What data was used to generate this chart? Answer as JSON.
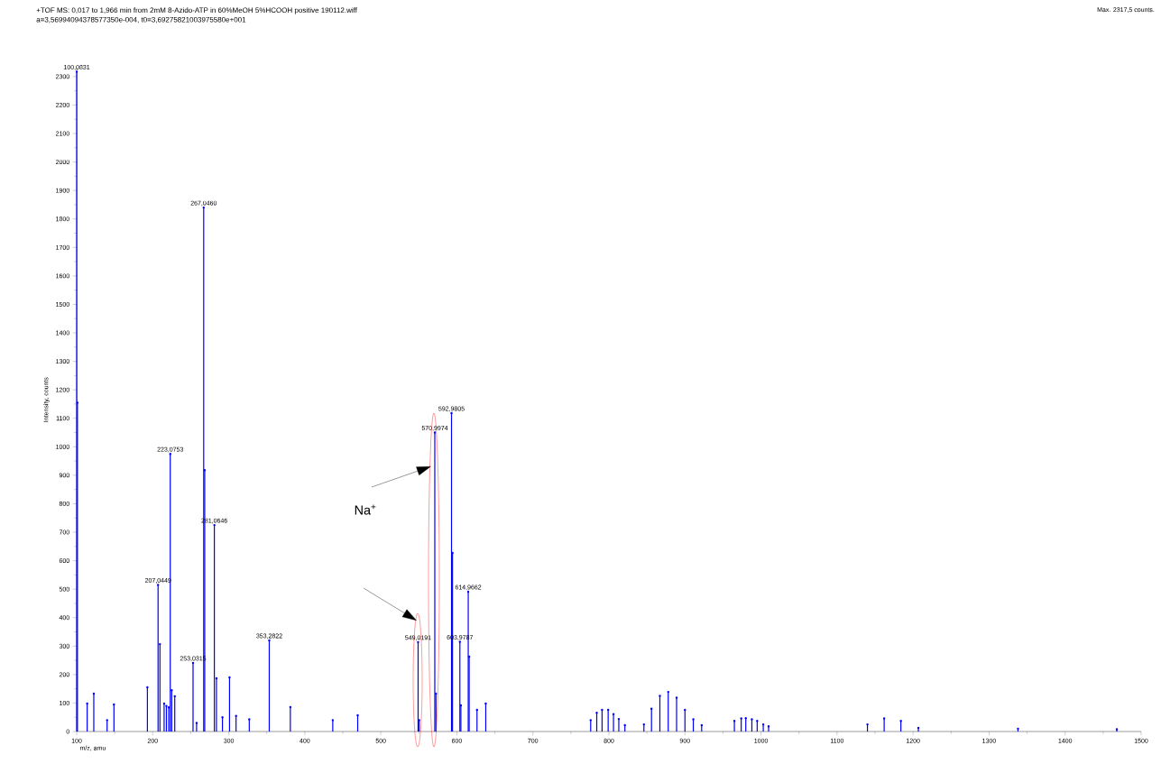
{
  "chart_data": {
    "type": "lollipop",
    "title": "+TOF MS: 0,017 to 1,966 min from 2mM 8-Azido-ATP in 60%MeOH 5%HCOOH positive 190112.wiff",
    "subtitle": "a=3,56994094378577350e-004, t0=3,69275821003975580e+001",
    "xlabel": "m/z, amu",
    "ylabel": "Intensity, counts",
    "annotations": [
      "Max. 2317,5 counts.",
      "Na$^{+}$"
    ],
    "color": "#0000ff",
    "x": [
      100.08,
      101.0,
      113.8,
      122.5,
      140,
      149,
      193,
      207.04,
      209.5,
      215,
      218,
      221,
      223.08,
      225,
      229,
      253.03,
      257.7,
      267.05,
      268.4,
      281.06,
      283.8,
      291.7,
      301,
      309.6,
      327,
      353.28,
      381,
      436.8,
      469.6,
      549.02,
      550.5,
      571.0,
      572.5,
      592.98,
      594.3,
      603.98,
      605.3,
      614.97,
      616.2,
      626.5,
      638,
      776,
      784,
      791,
      799,
      806,
      813,
      821,
      846,
      856,
      867,
      878,
      889,
      900,
      911,
      922,
      965,
      974,
      980,
      988,
      995,
      1003,
      1010,
      1140,
      1162,
      1184,
      1207,
      1338,
      1468
    ],
    "values": [
      2317,
      1155,
      98,
      133,
      40,
      95,
      155,
      515,
      307,
      98,
      90,
      85,
      975,
      145,
      124,
      241,
      30,
      1840,
      918,
      725,
      187,
      50,
      190,
      55,
      43,
      320,
      86,
      40,
      57,
      314,
      40,
      1050,
      133,
      1118,
      627,
      315,
      92,
      491,
      263,
      76,
      98,
      40,
      66,
      76,
      76,
      61,
      44,
      22,
      25,
      80,
      125,
      139,
      119,
      76,
      43,
      22,
      37,
      46,
      47,
      43,
      37,
      25,
      18,
      25,
      46,
      37,
      13,
      10,
      8
    ],
    "value_labels": [
      "100,0831",
      null,
      null,
      null,
      null,
      null,
      null,
      "207,0449",
      null,
      null,
      null,
      null,
      "223,0753",
      null,
      null,
      "253,0315",
      null,
      "267,0460",
      null,
      "281,0646",
      null,
      null,
      null,
      null,
      null,
      "353,2822",
      null,
      null,
      null,
      "549,0191",
      null,
      "570,9974",
      null,
      "592,9805",
      null,
      "603,9787",
      null,
      "614,9662",
      null,
      null,
      null,
      null,
      null,
      null,
      null,
      null,
      null,
      null,
      null,
      null,
      null,
      null,
      null,
      null,
      null,
      null,
      null,
      null,
      null,
      null,
      null,
      null,
      null,
      null,
      null,
      null,
      null,
      null,
      null
    ],
    "xlim": [
      100,
      1500
    ],
    "xticks": [
      100,
      200,
      300,
      400,
      500,
      600,
      700,
      800,
      900,
      1000,
      1100,
      1200,
      1300,
      1400,
      1500
    ],
    "ylim": [
      0,
      2330
    ],
    "yticks": [
      0,
      100,
      200,
      300,
      400,
      500,
      600,
      700,
      800,
      900,
      1000,
      1100,
      1200,
      1300,
      1400,
      1500,
      1600,
      1700,
      1800,
      1900,
      2000,
      2100,
      2200,
      2300
    ]
  }
}
